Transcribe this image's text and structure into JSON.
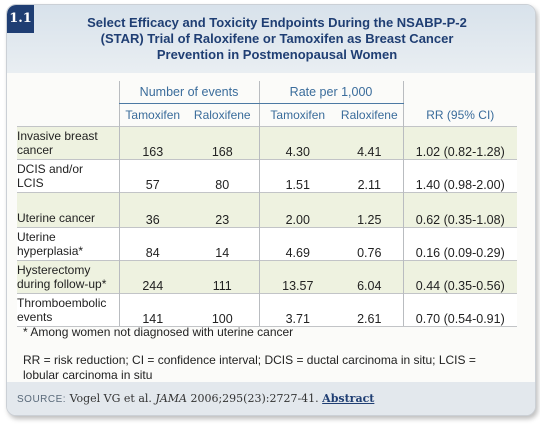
{
  "badge": "1.1",
  "title": {
    "line1": "Select Efficacy and Toxicity Endpoints During the NSABP-P-2",
    "line2": "(STAR) Trial of Raloxifene or Tamoxifen as Breast Cancer",
    "line3": "Prevention in Postmenopausal Women"
  },
  "table": {
    "group_headers": {
      "events": "Number of events",
      "rate": "Rate per 1,000"
    },
    "columns": [
      "Tamoxifen",
      "Raloxifene",
      "Tamoxifen",
      "Raloxifene",
      "RR (95% CI)"
    ],
    "rows": [
      {
        "label_line1": "Invasive breast",
        "label_line2": "cancer",
        "tam_events": "163",
        "ral_events": "168",
        "tam_rate": "4.30",
        "ral_rate": "4.41",
        "rr": "1.02 (0.82-1.28)"
      },
      {
        "label_line1": "DCIS and/or",
        "label_line2": "LCIS",
        "tam_events": "57",
        "ral_events": "80",
        "tam_rate": "1.51",
        "ral_rate": "2.11",
        "rr": "1.40 (0.98-2.00)"
      },
      {
        "label_line1": "Uterine cancer",
        "label_line2": "",
        "tam_events": "36",
        "ral_events": "23",
        "tam_rate": "2.00",
        "ral_rate": "1.25",
        "rr": "0.62 (0.35-1.08)"
      },
      {
        "label_line1": "Uterine",
        "label_line2": "hyperplasia*",
        "tam_events": "84",
        "ral_events": "14",
        "tam_rate": "4.69",
        "ral_rate": "0.76",
        "rr": "0.16 (0.09-0.29)"
      },
      {
        "label_line1": "Hysterectomy",
        "label_line2": "during follow-up*",
        "tam_events": "244",
        "ral_events": "111",
        "tam_rate": "13.57",
        "ral_rate": "6.04",
        "rr": "0.44 (0.35-0.56)"
      },
      {
        "label_line1": "Thromboembolic",
        "label_line2": "events",
        "tam_events": "141",
        "ral_events": "100",
        "tam_rate": "3.71",
        "ral_rate": "2.61",
        "rr": "0.70 (0.54-0.91)"
      }
    ]
  },
  "footnotes": {
    "note1": "* Among women not diagnosed with uterine cancer",
    "note2": "RR = risk reduction; CI = confidence interval; DCIS = ductal carcinoma in situ; LCIS = lobular carcinoma in situ"
  },
  "source": {
    "label": "SOURCE:",
    "authors": "Vogel VG et al.",
    "journal": "JAMA",
    "citation": "2006;295(23):2727-41.",
    "link": "Abstract"
  },
  "colors": {
    "header_text": "#1f3e73",
    "row_tint": "#eef2e0",
    "column_header": "#3a6c9b"
  }
}
